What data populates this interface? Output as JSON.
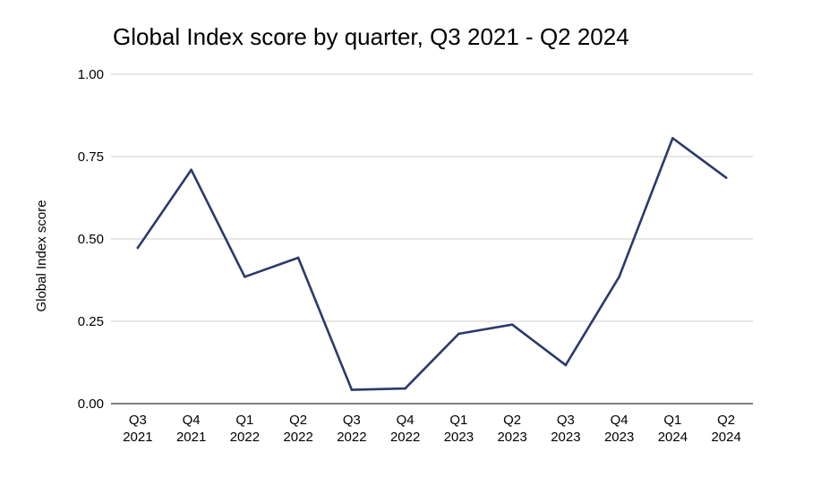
{
  "chart_data": {
    "type": "line",
    "title": "Global Index score by quarter, Q3 2021 - Q2 2024",
    "xlabel": "",
    "ylabel": "Global Index score",
    "ylim": [
      0,
      1
    ],
    "yticks": [
      "0.00",
      "0.25",
      "0.50",
      "0.75",
      "1.00"
    ],
    "grid": true,
    "legend": "none",
    "categories": [
      [
        "Q3",
        "2021"
      ],
      [
        "Q4",
        "2021"
      ],
      [
        "Q1",
        "2022"
      ],
      [
        "Q2",
        "2022"
      ],
      [
        "Q3",
        "2022"
      ],
      [
        "Q4",
        "2022"
      ],
      [
        "Q1",
        "2023"
      ],
      [
        "Q2",
        "2023"
      ],
      [
        "Q3",
        "2023"
      ],
      [
        "Q4",
        "2023"
      ],
      [
        "Q1",
        "2024"
      ],
      [
        "Q2",
        "2024"
      ]
    ],
    "series": [
      {
        "color": "#2b3a6b",
        "values": [
          0.473,
          0.71,
          0.385,
          0.443,
          0.042,
          0.046,
          0.212,
          0.24,
          0.117,
          0.385,
          0.806,
          0.686
        ]
      }
    ]
  }
}
